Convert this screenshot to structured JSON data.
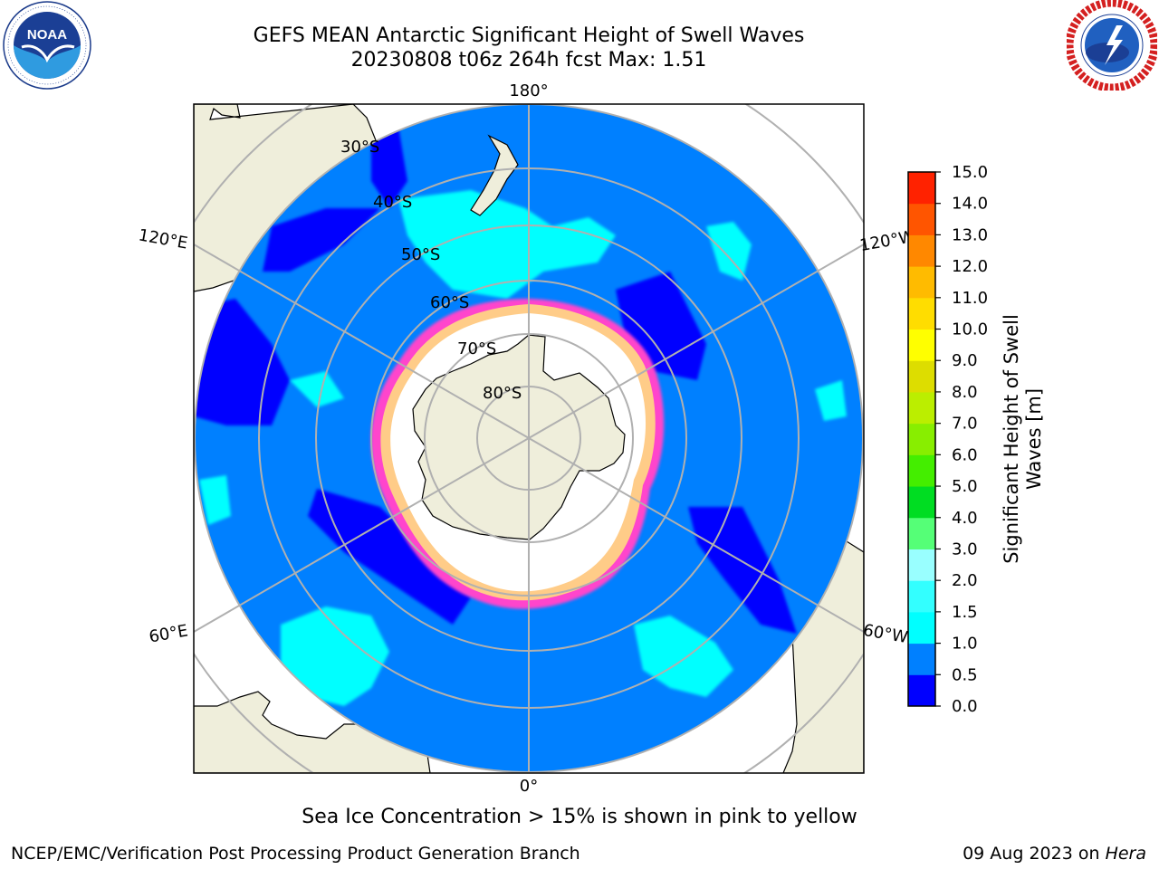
{
  "title": {
    "line1": "GEFS MEAN Antarctic Significant Height of Swell Waves",
    "line2": "20230808 t06z 264h fcst   Max: 1.51"
  },
  "logos": {
    "left": {
      "name": "noaa-logo",
      "text": "NOAA",
      "ring_text": "NATIONAL OCEANIC AND ATMOSPHERIC ADMINISTRATION · U.S. DEPARTMENT OF COMMERCE"
    },
    "right": {
      "name": "nws-logo",
      "ring_text": "NATIONAL WEATHER SERVICE"
    }
  },
  "map": {
    "projection": "south polar stereographic",
    "longitude_labels": [
      "180°",
      "120°E",
      "120°W",
      "60°E",
      "60°W",
      "0°"
    ],
    "latitude_labels": [
      "30°S",
      "40°S",
      "50°S",
      "60°S",
      "70°S",
      "80°S"
    ],
    "colors": {
      "land": "#efeedb",
      "ocean_low": "#0080ff",
      "ocean_vlow": "#0000ff",
      "ocean_mid": "#00ffff",
      "sea_ice_edge": "#ff44cc",
      "sea_ice_inner": "#ffcc88",
      "ice_interior": "#ffffff",
      "grid": "#b0b0b0"
    }
  },
  "colorbar": {
    "label_line1": "Significant Height of Swell",
    "label_line2": "Waves [m]",
    "ticks": [
      "0.0",
      "0.5",
      "1.0",
      "1.5",
      "2.0",
      "3.0",
      "4.0",
      "5.0",
      "6.0",
      "7.0",
      "8.0",
      "9.0",
      "10.0",
      "11.0",
      "12.0",
      "13.0",
      "14.0",
      "15.0"
    ],
    "colors": [
      "#0000ff",
      "#0080ff",
      "#00ffff",
      "#33ffff",
      "#99ffff",
      "#55ff77",
      "#00dd22",
      "#44ee00",
      "#88ee00",
      "#bbee00",
      "#dddd00",
      "#ffff00",
      "#ffdd00",
      "#ffbb00",
      "#ff8800",
      "#ff5500",
      "#ff2200",
      "#ff0000"
    ]
  },
  "caption": "Sea Ice Concentration > 15% is shown in pink to yellow",
  "footer": {
    "credit": "NCEP/EMC/Verification Post Processing Product Generation Branch",
    "date": "09 Aug 2023 on ",
    "machine": "Hera"
  }
}
